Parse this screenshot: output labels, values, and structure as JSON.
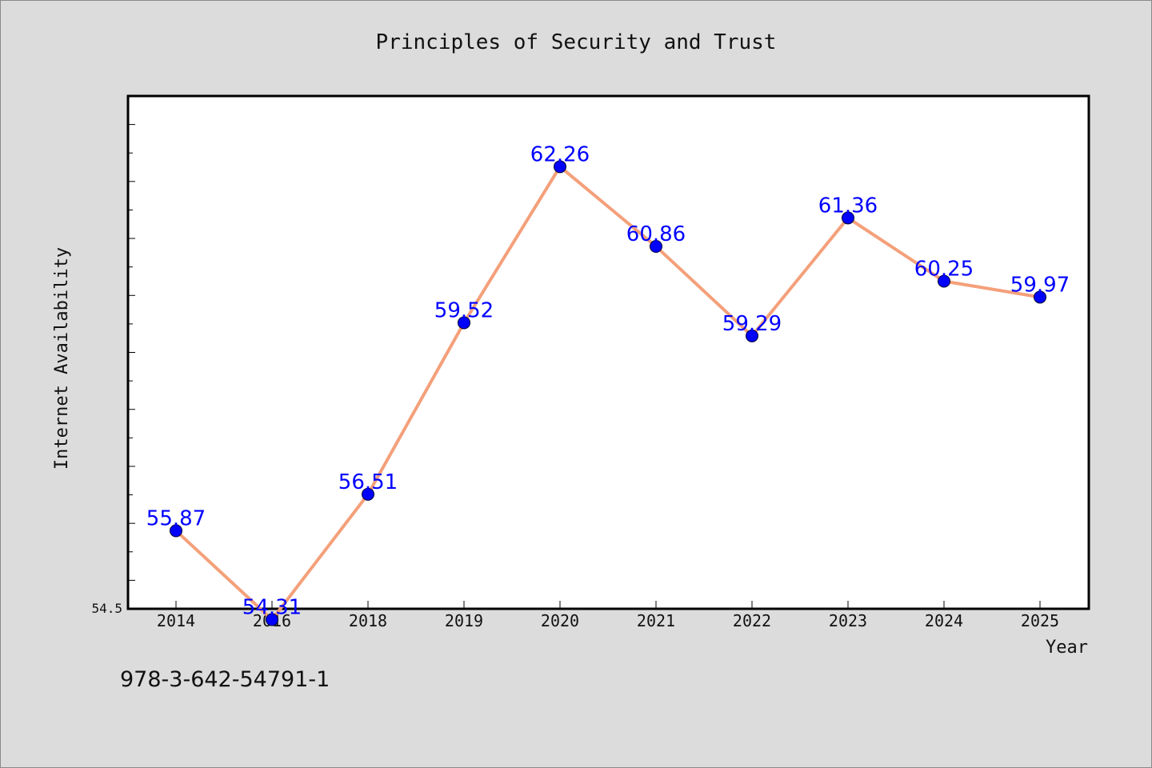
{
  "chart_data": {
    "type": "line",
    "title": "Principles of Security and Trust",
    "xlabel": "Year",
    "ylabel": "Internet Availability",
    "categories": [
      "2014",
      "2016",
      "2018",
      "2019",
      "2020",
      "2021",
      "2022",
      "2023",
      "2024",
      "2025"
    ],
    "series": [
      {
        "values": [
          55.87,
          54.31,
          56.51,
          59.52,
          62.26,
          60.86,
          59.29,
          61.36,
          60.25,
          59.97
        ],
        "color": "#f4a07a"
      }
    ],
    "data_labels": [
      "55.87",
      "54.31",
      "56.51",
      "59.52",
      "62.26",
      "60.86",
      "59.29",
      "61.36",
      "60.25",
      "59.97"
    ],
    "ytick_label": "54.5",
    "ylim": [
      54.5,
      63.5
    ],
    "grid": false,
    "marker_color": "#0000ff",
    "label_color": "#0000ff"
  },
  "footer": {
    "isbn": "978-3-642-54791-1"
  }
}
